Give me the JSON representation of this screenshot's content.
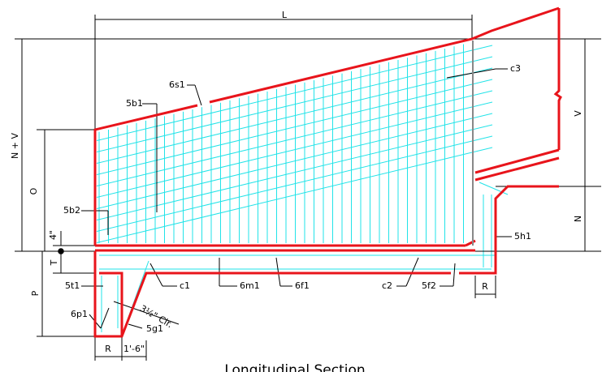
{
  "labels": [
    "L",
    "c3",
    "6s1",
    "5b1",
    "N + V",
    "V",
    "O",
    "5b2",
    "4\"",
    "N",
    "5h1",
    "T",
    "5t1",
    "c1",
    "6m1",
    "6f1",
    "c2",
    "5f2",
    "R",
    "P",
    "6p1",
    "3½\" Clr.",
    "5g1",
    "R",
    "1'-6\"",
    "Longitudinal Section"
  ]
}
